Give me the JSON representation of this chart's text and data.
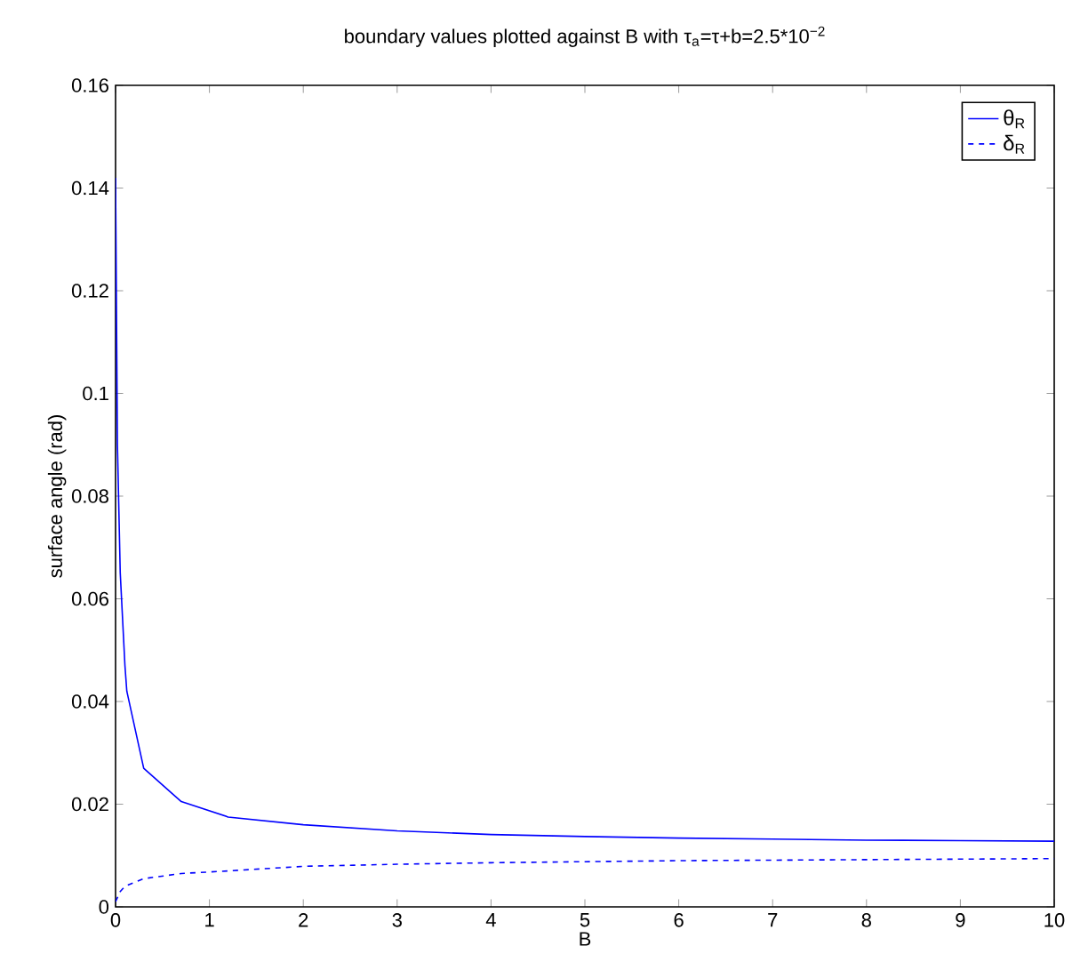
{
  "chart_data": {
    "type": "line",
    "title": "boundary values plotted against B with τ$_{a}$=τ+b=2.5*10$^{−2}$",
    "xlabel": "B",
    "ylabel": "surface angle (rad)",
    "xlim": [
      0,
      10
    ],
    "ylim": [
      0,
      0.16
    ],
    "xticks": [
      0,
      1,
      2,
      3,
      4,
      5,
      6,
      7,
      8,
      9,
      10
    ],
    "yticks": [
      0,
      0.02,
      0.04,
      0.06,
      0.08,
      0.1,
      0.12,
      0.14,
      0.16
    ],
    "legend": "top right",
    "series": [
      {
        "name": "θ$_{R}$",
        "color": "#0000ff",
        "line_style": "solid",
        "x": [
          0,
          0.02,
          0.05,
          0.1,
          0.12,
          0.3,
          0.7,
          1.2,
          2,
          3,
          4,
          5,
          6,
          7,
          8,
          9,
          10
        ],
        "values": [
          0.142,
          0.09,
          0.065,
          0.047,
          0.042,
          0.027,
          0.0205,
          0.0175,
          0.016,
          0.0148,
          0.0141,
          0.0137,
          0.0134,
          0.0132,
          0.013,
          0.0129,
          0.0128
        ]
      },
      {
        "name": "δ$_{R}$",
        "color": "#0000ff",
        "line_style": "dashed",
        "x": [
          0,
          0.05,
          0.1,
          0.3,
          0.7,
          1.2,
          2,
          3,
          4,
          5,
          6,
          7,
          8,
          9,
          10
        ],
        "values": [
          0.001,
          0.003,
          0.004,
          0.0055,
          0.0065,
          0.007,
          0.0079,
          0.0083,
          0.0086,
          0.0088,
          0.009,
          0.0091,
          0.0092,
          0.0093,
          0.0094
        ]
      }
    ]
  }
}
